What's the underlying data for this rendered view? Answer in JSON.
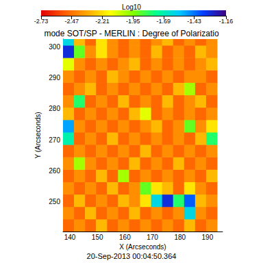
{
  "chart_data": {
    "type": "heatmap",
    "title": "mode SOT/SP - MERLIN : Degree of Polarizatio",
    "x_label": "X (Arcseconds)",
    "y_label": "Y (Arcseconds)",
    "annotations": [
      "20-Sep-2013 00:04:50.364"
    ],
    "xlim": [
      137.5,
      195.5
    ],
    "ylim": [
      240.5,
      302.5
    ],
    "xticks": [
      140,
      150,
      160,
      170,
      180,
      190
    ],
    "yticks": [
      250,
      260,
      270,
      280,
      290,
      300
    ],
    "grid": false,
    "colors": [
      "#e00000",
      "#ff5a00",
      "#ffa800",
      "#ffff00",
      "#80ff00",
      "#00ff90",
      "#00c8ff",
      "#0040ff",
      "#400080"
    ],
    "colorbar": {
      "label": "Log10",
      "range": [
        -2.73,
        -1.16
      ],
      "ticks": [
        -2.73,
        -2.47,
        -2.21,
        -1.95,
        -1.69,
        -1.43,
        -1.16
      ]
    },
    "x": [
      139.5,
      143.5,
      147.5,
      151.5,
      155.5,
      159.5,
      163.5,
      167.5,
      171.5,
      175.5,
      179.5,
      183.5,
      187.5,
      191.5
    ],
    "y": [
      242.5,
      246.5,
      250.5,
      254.5,
      258.5,
      262.5,
      266.5,
      270.5,
      274.5,
      278.5,
      282.5,
      286.5,
      290.5,
      294.5,
      298.5,
      302.5
    ],
    "cells": [
      [
        -2.5,
        -2.4,
        -2.5,
        -2.3,
        -2.5,
        -2.4,
        -2.5,
        -2.4,
        -2.5,
        -2.4,
        -2.5,
        -2.3,
        -2.5,
        -2.4
      ],
      [
        -2.4,
        -2.5,
        -2.3,
        -2.5,
        -2.4,
        -2.5,
        -2.3,
        -2.5,
        -2.4,
        -2.5,
        -2.4,
        -1.6,
        -2.4,
        -2.5
      ],
      [
        -2.5,
        -2.3,
        -2.5,
        -2.4,
        -2.5,
        -2.3,
        -2.4,
        -2.2,
        -1.6,
        -1.3,
        -1.8,
        -1.4,
        -2.3,
        -2.4
      ],
      [
        -2.4,
        -2.5,
        -2.4,
        -2.5,
        -2.3,
        -2.5,
        -2.4,
        -1.9,
        -2.2,
        -2.3,
        -2.5,
        -2.2,
        -2.4,
        -2.5
      ],
      [
        -2.5,
        -2.4,
        -2.5,
        -2.3,
        -2.5,
        -2.0,
        -2.5,
        -2.4,
        -2.5,
        -2.4,
        -2.5,
        -2.4,
        -2.5,
        -2.3
      ],
      [
        -2.4,
        -2.0,
        -2.4,
        -2.5,
        -2.4,
        -2.5,
        -2.3,
        -2.5,
        -2.4,
        -2.5,
        -2.3,
        -2.5,
        -2.4,
        -2.5
      ],
      [
        -2.5,
        -2.4,
        -2.5,
        -2.4,
        -2.5,
        -2.4,
        -2.5,
        -2.3,
        -2.5,
        -2.4,
        -2.5,
        -2.4,
        -2.5,
        -2.4
      ],
      [
        -1.7,
        -2.5,
        -2.4,
        -2.5,
        -2.3,
        -2.5,
        -2.4,
        -2.5,
        -2.4,
        -2.5,
        -2.4,
        -2.5,
        -2.3,
        -1.8
      ],
      [
        -1.5,
        -2.4,
        -2.5,
        -2.4,
        -2.5,
        -2.4,
        -2.5,
        -2.4,
        -2.3,
        -2.5,
        -2.4,
        -1.9,
        -2.4,
        -2.2
      ],
      [
        -2.3,
        -2.5,
        -2.4,
        -2.5,
        -2.4,
        -2.5,
        -2.3,
        -2.1,
        -2.5,
        -2.4,
        -2.5,
        -2.4,
        -2.5,
        -2.4
      ],
      [
        -2.4,
        -1.8,
        -2.5,
        -2.4,
        -2.5,
        -2.3,
        -2.5,
        -2.4,
        -2.5,
        -2.3,
        -2.5,
        -2.4,
        -2.3,
        -2.5
      ],
      [
        -2.5,
        -2.4,
        -2.3,
        -2.5,
        -2.4,
        -2.5,
        -2.4,
        -2.5,
        -2.4,
        -2.5,
        -2.3,
        -2.0,
        -2.5,
        -2.4
      ],
      [
        -2.4,
        -2.5,
        -2.4,
        -2.5,
        -2.3,
        -2.4,
        -2.5,
        -2.4,
        -2.5,
        -2.4,
        -2.5,
        -2.4,
        -2.4,
        -2.5
      ],
      [
        -2.1,
        -2.4,
        -2.5,
        -2.4,
        -2.5,
        -2.4,
        -2.3,
        -2.5,
        -2.4,
        -2.5,
        -2.4,
        -2.5,
        -2.4,
        -2.3
      ],
      [
        -1.3,
        -1.9,
        -2.4,
        -2.2,
        -2.4,
        -2.5,
        -2.4,
        -2.5,
        -2.3,
        -2.5,
        -2.4,
        -2.5,
        -2.3,
        -2.4
      ],
      [
        -1.6,
        -2.3,
        -2.5,
        -2.2,
        -2.4,
        -2.5,
        -2.4,
        -2.5,
        -2.4,
        -2.3,
        -2.5,
        -2.4,
        -2.5,
        -2.4
      ]
    ]
  }
}
